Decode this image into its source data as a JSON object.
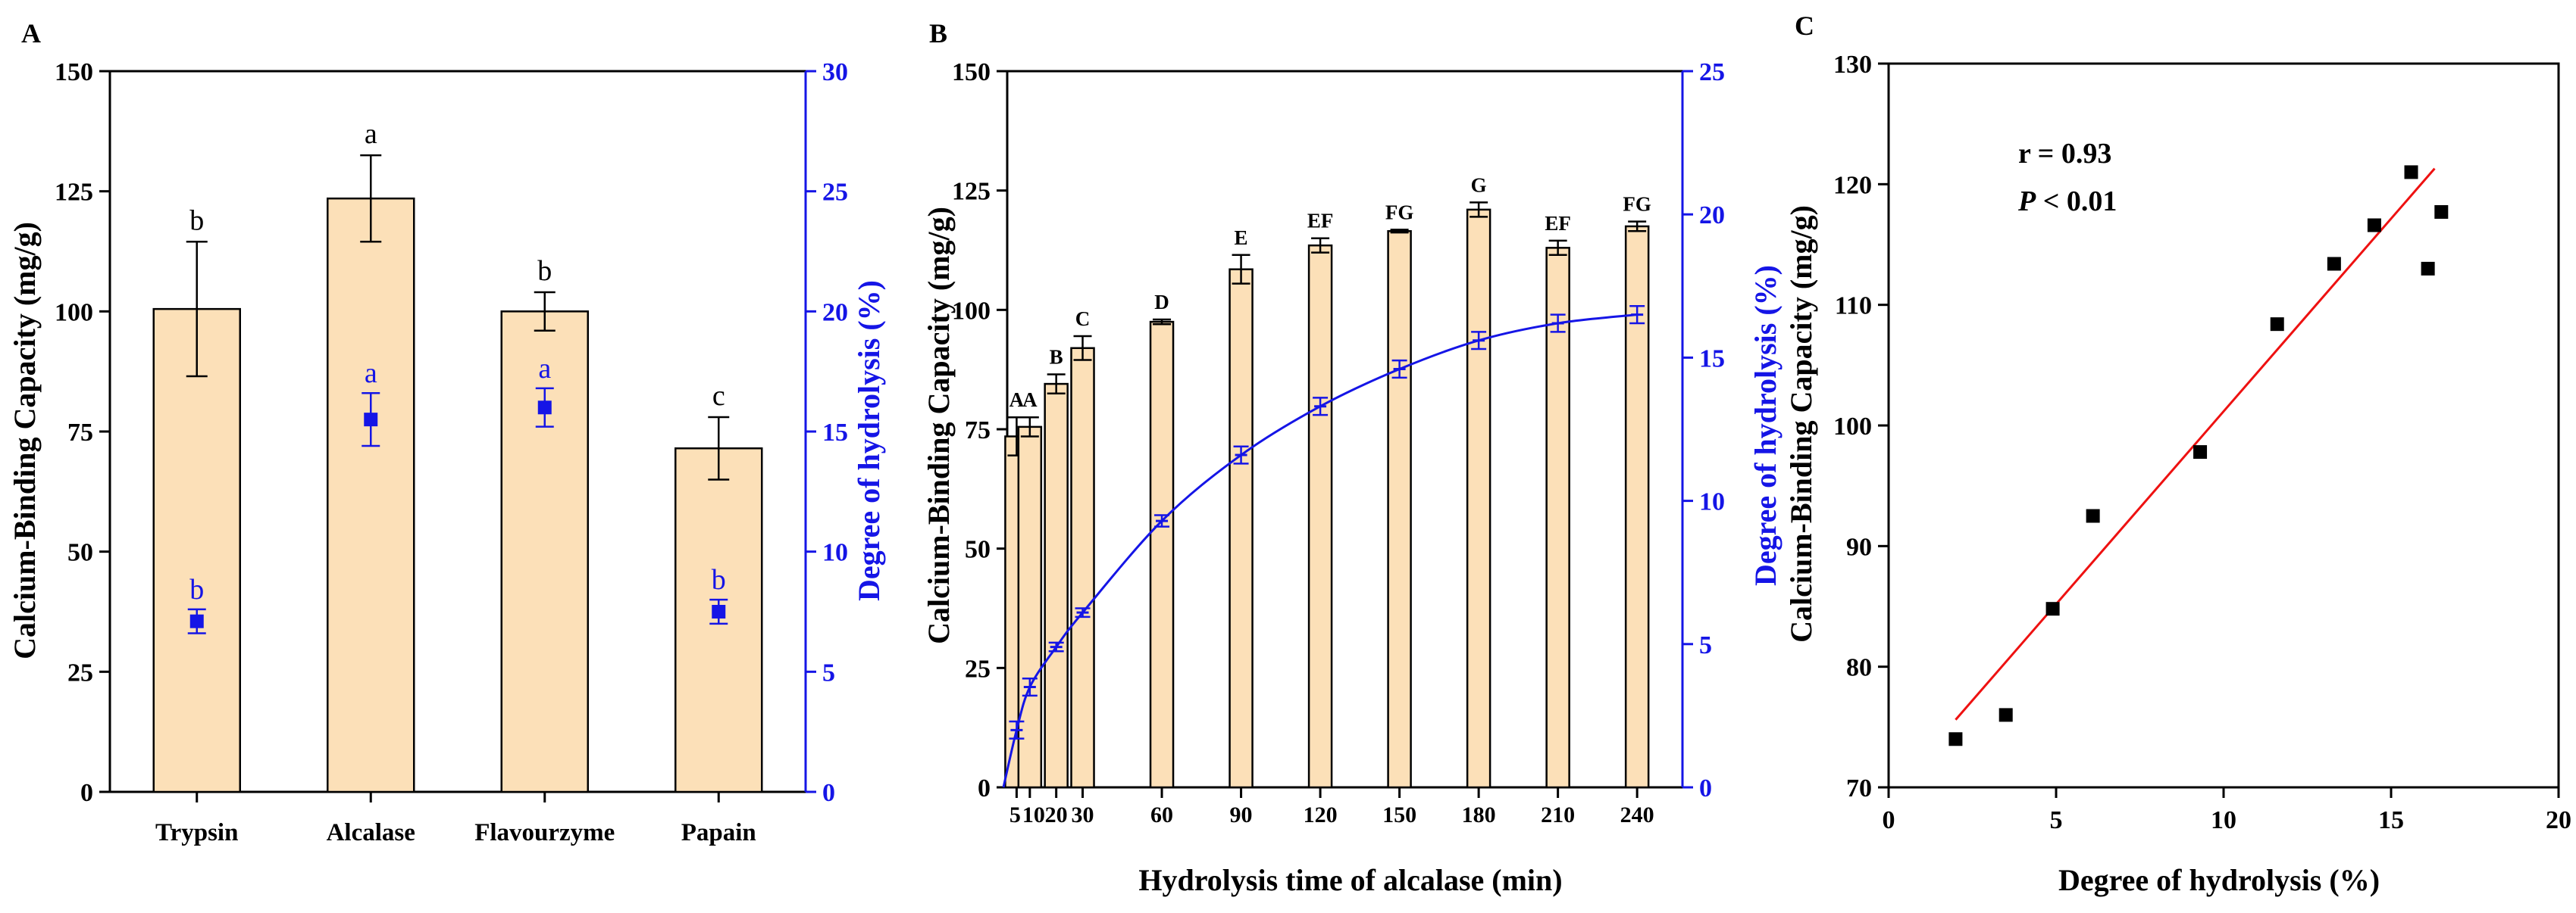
{
  "colors": {
    "bar_fill": "#FCE0B8",
    "axis": "#000000",
    "blue": "#1515E6",
    "fit_line": "#EE1111"
  },
  "chart_data": [
    {
      "panel_label": "A",
      "type": "bar",
      "categories": [
        "Trypsin",
        "Alcalase",
        "Flavourzyme",
        "Papain"
      ],
      "series": [
        {
          "values": [
            100.5,
            123.5,
            100.0,
            71.5
          ],
          "errors": [
            14,
            9,
            4,
            6.5
          ],
          "letters": [
            "b",
            "a",
            "b",
            "c"
          ]
        },
        {
          "values": [
            7.1,
            15.5,
            16.0,
            7.5
          ],
          "errors": [
            0.5,
            1.1,
            0.8,
            0.5
          ],
          "letters": [
            "b",
            "a",
            "a",
            "b"
          ],
          "axis": "right",
          "marker": "square"
        }
      ],
      "ylabel": "Calcium-Binding Capacity (mg/g)",
      "ylabel_right": "Degree of hydrolysis (%)",
      "ylim": [
        0,
        150
      ],
      "yticks": [
        0,
        25,
        50,
        75,
        100,
        125,
        150
      ],
      "ylim_right": [
        0,
        30
      ],
      "yticks_right": [
        0,
        5,
        10,
        15,
        20,
        25,
        30
      ]
    },
    {
      "panel_label": "B",
      "type": "bar",
      "x": [
        5,
        10,
        20,
        30,
        60,
        90,
        120,
        150,
        180,
        210,
        240
      ],
      "xtick_labels": [
        "5",
        "10",
        "20",
        "30",
        "60",
        "90",
        "120",
        "150",
        "180",
        "210",
        "240"
      ],
      "series": [
        {
          "values": [
            73.5,
            75.5,
            84.5,
            92,
            97.5,
            108.5,
            113.5,
            116.5,
            121,
            113,
            117.5
          ],
          "errors": [
            4,
            2,
            2,
            2.5,
            0.5,
            3,
            1.5,
            0.3,
            1.5,
            1.5,
            1
          ],
          "letters": [
            "A",
            "A",
            "B",
            "C",
            "D",
            "E",
            "EF",
            "FG",
            "G",
            "EF",
            "FG"
          ]
        },
        {
          "type": "line",
          "axis": "right",
          "x": [
            5,
            10,
            20,
            30,
            60,
            90,
            120,
            150,
            180,
            210,
            240
          ],
          "values": [
            2.0,
            3.5,
            4.9,
            6.1,
            9.3,
            11.6,
            13.3,
            14.6,
            15.6,
            16.2,
            16.5
          ],
          "errors": [
            0.3,
            0.3,
            0.15,
            0.15,
            0.2,
            0.3,
            0.3,
            0.3,
            0.3,
            0.3,
            0.3
          ]
        }
      ],
      "xlabel": "Hydrolysis time of alcalase (min)",
      "ylabel": "Calcium-Binding Capacity (mg/g)",
      "ylabel_right": "Degree of hydrolysis (%)",
      "ylim": [
        0,
        150
      ],
      "yticks": [
        0,
        25,
        50,
        75,
        100,
        125,
        150
      ],
      "ylim_right": [
        0,
        25
      ],
      "yticks_right": [
        0,
        5,
        10,
        15,
        20,
        25
      ]
    },
    {
      "panel_label": "C",
      "type": "scatter",
      "points": [
        [
          2.0,
          74
        ],
        [
          3.5,
          76
        ],
        [
          4.9,
          84.8
        ],
        [
          6.1,
          92.5
        ],
        [
          9.3,
          97.8
        ],
        [
          11.6,
          108.4
        ],
        [
          13.3,
          113.4
        ],
        [
          14.5,
          116.6
        ],
        [
          15.6,
          121
        ],
        [
          16.1,
          113
        ],
        [
          16.5,
          117.7
        ]
      ],
      "fit": {
        "x": [
          2.0,
          16.3
        ],
        "y": [
          75.6,
          121.3
        ]
      },
      "annotation_r": "r = 0.93",
      "annotation_p_symbol": "P",
      "annotation_p_rest": " < 0.01",
      "xlabel": "Degree of hydrolysis (%)",
      "ylabel": "Calcium-Binding Capacity (mg/g)",
      "xlim": [
        0,
        20
      ],
      "xticks": [
        0,
        5,
        10,
        15,
        20
      ],
      "ylim": [
        70,
        130
      ],
      "yticks": [
        70,
        80,
        90,
        100,
        110,
        120,
        130
      ]
    }
  ]
}
